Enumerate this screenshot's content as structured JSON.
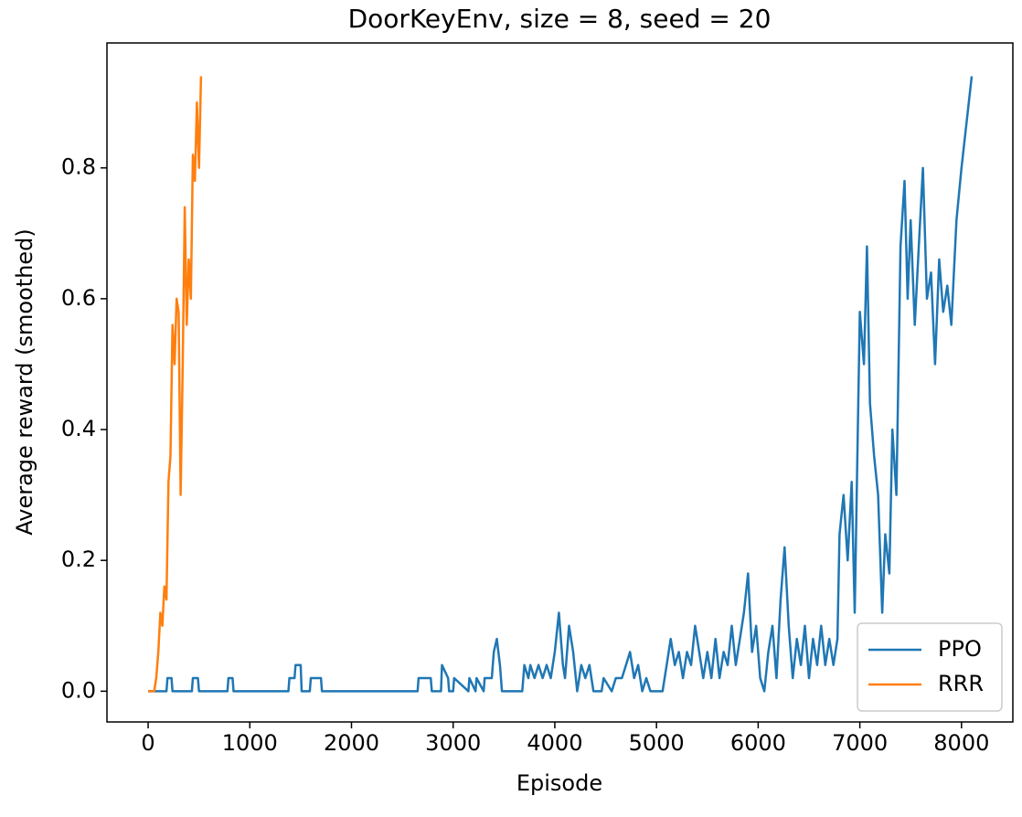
{
  "chart_data": {
    "type": "line",
    "title": "DoorKeyEnv, size = 8, seed = 20",
    "x_label": "Episode",
    "y_label": "Average reward (smoothed)",
    "xlim": [
      -405,
      8505
    ],
    "ylim": [
      -0.047,
      0.991
    ],
    "xticks": [
      0,
      1000,
      2000,
      3000,
      4000,
      5000,
      6000,
      7000,
      8000
    ],
    "yticks": [
      {
        "value": 0,
        "label": "0.0"
      },
      0.2,
      0.4,
      0.6,
      0.8
    ],
    "grid": false,
    "legend": "lower right",
    "series": [
      {
        "name": "PPO",
        "color": "#1f77b4",
        "x": [
          0,
          180,
          190,
          230,
          240,
          430,
          440,
          490,
          500,
          780,
          790,
          830,
          840,
          1380,
          1390,
          1440,
          1450,
          1500,
          1510,
          1590,
          1600,
          1700,
          1710,
          2650,
          2660,
          2780,
          2790,
          2880,
          2890,
          2950,
          2960,
          3000,
          3010,
          3150,
          3160,
          3220,
          3230,
          3300,
          3310,
          3380,
          3400,
          3430,
          3460,
          3480,
          3680,
          3700,
          3740,
          3760,
          3800,
          3840,
          3880,
          3920,
          3960,
          4000,
          4040,
          4080,
          4100,
          4140,
          4180,
          4220,
          4260,
          4300,
          4340,
          4380,
          4460,
          4480,
          4560,
          4600,
          4660,
          4700,
          4740,
          4780,
          4820,
          4860,
          4900,
          4940,
          4980,
          5060,
          5100,
          5140,
          5180,
          5220,
          5260,
          5300,
          5340,
          5380,
          5420,
          5460,
          5500,
          5540,
          5580,
          5620,
          5660,
          5700,
          5740,
          5780,
          5820,
          5860,
          5900,
          5940,
          5980,
          6020,
          6060,
          6100,
          6140,
          6180,
          6220,
          6260,
          6300,
          6340,
          6380,
          6420,
          6460,
          6500,
          6540,
          6580,
          6620,
          6660,
          6700,
          6740,
          6780,
          6800,
          6840,
          6880,
          6920,
          6950,
          6980,
          7000,
          7040,
          7070,
          7100,
          7140,
          7180,
          7220,
          7250,
          7290,
          7320,
          7360,
          7400,
          7440,
          7470,
          7500,
          7540,
          7580,
          7620,
          7660,
          7700,
          7740,
          7780,
          7820,
          7860,
          7900,
          7950,
          8000,
          8100
        ],
        "values": [
          0,
          0,
          0.02,
          0.02,
          0,
          0,
          0.02,
          0.02,
          0,
          0,
          0.02,
          0.02,
          0,
          0,
          0.02,
          0.02,
          0.04,
          0.04,
          0,
          0,
          0.02,
          0.02,
          0,
          0,
          0.02,
          0.02,
          0,
          0,
          0.04,
          0.02,
          0,
          0,
          0.02,
          0,
          0.02,
          0,
          0.02,
          0,
          0.02,
          0.02,
          0.06,
          0.08,
          0.04,
          0,
          0,
          0.04,
          0.02,
          0.04,
          0.02,
          0.04,
          0.02,
          0.04,
          0.02,
          0.06,
          0.12,
          0.04,
          0.02,
          0.1,
          0.06,
          0,
          0.04,
          0.02,
          0.04,
          0,
          0,
          0.02,
          0,
          0.02,
          0.02,
          0.04,
          0.06,
          0.02,
          0.04,
          0,
          0.02,
          0,
          0,
          0,
          0.04,
          0.08,
          0.04,
          0.06,
          0.02,
          0.06,
          0.04,
          0.1,
          0.06,
          0.02,
          0.06,
          0.02,
          0.08,
          0.02,
          0.06,
          0.04,
          0.1,
          0.04,
          0.08,
          0.12,
          0.18,
          0.06,
          0.1,
          0.02,
          0,
          0.06,
          0.1,
          0.02,
          0.14,
          0.22,
          0.1,
          0.02,
          0.08,
          0.04,
          0.1,
          0.02,
          0.08,
          0.04,
          0.1,
          0.04,
          0.08,
          0.04,
          0.08,
          0.24,
          0.3,
          0.2,
          0.32,
          0.12,
          0.4,
          0.58,
          0.5,
          0.68,
          0.44,
          0.36,
          0.3,
          0.12,
          0.24,
          0.18,
          0.4,
          0.3,
          0.68,
          0.78,
          0.6,
          0.72,
          0.56,
          0.68,
          0.8,
          0.6,
          0.64,
          0.5,
          0.66,
          0.58,
          0.62,
          0.56,
          0.72,
          0.8,
          0.94
        ]
      },
      {
        "name": "RRR",
        "color": "#ff7f0e",
        "x": [
          0,
          60,
          80,
          100,
          120,
          140,
          160,
          180,
          200,
          220,
          240,
          260,
          280,
          300,
          320,
          340,
          360,
          380,
          400,
          420,
          440,
          460,
          480,
          500,
          520
        ],
        "values": [
          0,
          0,
          0.02,
          0.06,
          0.12,
          0.1,
          0.16,
          0.14,
          0.32,
          0.36,
          0.56,
          0.5,
          0.6,
          0.58,
          0.3,
          0.5,
          0.74,
          0.56,
          0.66,
          0.6,
          0.82,
          0.78,
          0.9,
          0.8,
          0.94
        ]
      }
    ]
  }
}
